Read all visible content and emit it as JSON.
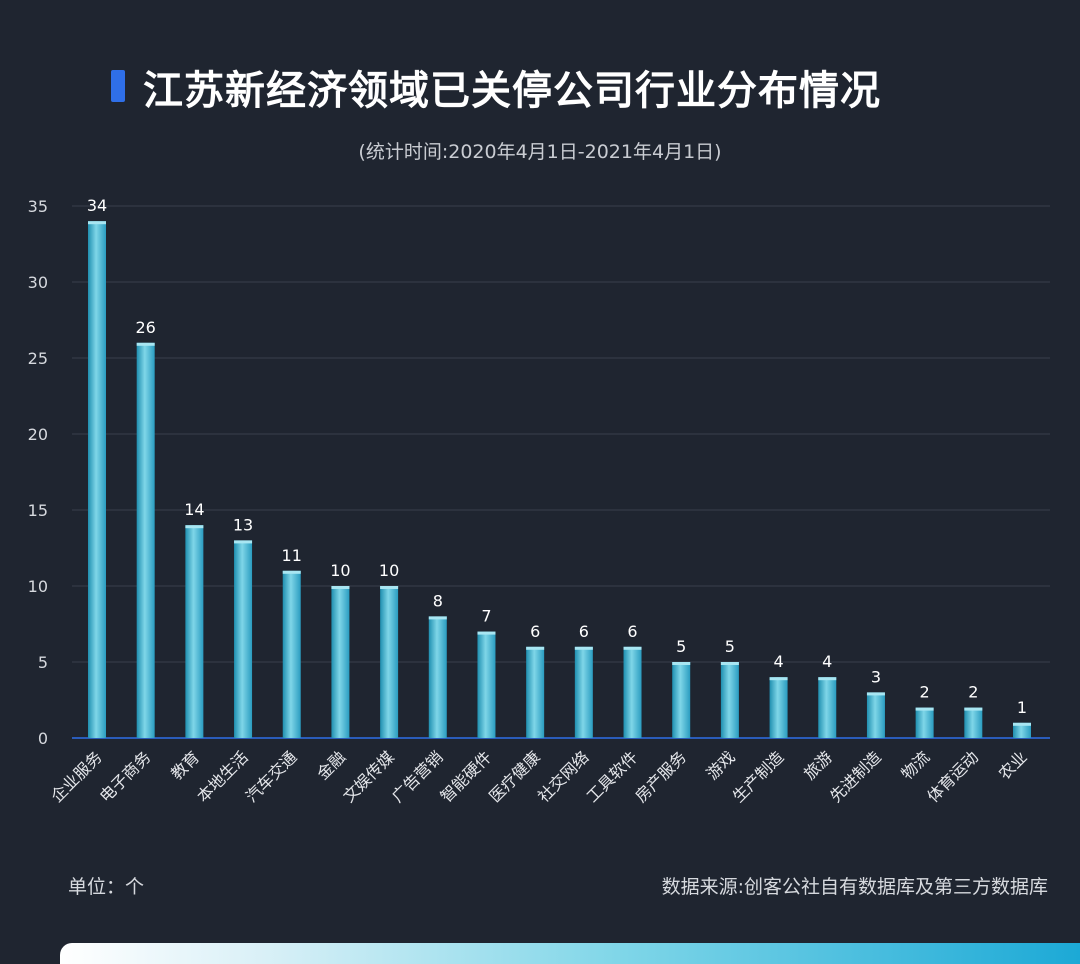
{
  "header": {
    "title": "江苏新经济领域已关停公司行业分布情况",
    "subtitle": "(统计时间:2020年4月1日-2021年4月1日)"
  },
  "footer": {
    "unit": "单位：个",
    "source": "数据来源:创客公社自有数据库及第三方数据库"
  },
  "colors": {
    "background": "#1f2530",
    "accent": "#2f6fe8",
    "bar_light": "#7fd6e8",
    "bar_dark": "#1f8fb0",
    "grid": "#3a404c"
  },
  "chart_data": {
    "type": "bar",
    "title": "江苏新经济领域已关停公司行业分布情况",
    "subtitle": "(统计时间:2020年4月1日-2021年4月1日)",
    "xlabel": "",
    "ylabel": "",
    "ylim": [
      0,
      35
    ],
    "yticks": [
      0,
      5,
      10,
      15,
      20,
      25,
      30,
      35
    ],
    "grid": true,
    "categories": [
      "企业服务",
      "电子商务",
      "教育",
      "本地生活",
      "汽车交通",
      "金融",
      "文娱传媒",
      "广告营销",
      "智能硬件",
      "医疗健康",
      "社交网络",
      "工具软件",
      "房产服务",
      "游戏",
      "生产制造",
      "旅游",
      "先进制造",
      "物流",
      "体育运动",
      "农业"
    ],
    "values": [
      34,
      26,
      14,
      13,
      11,
      10,
      10,
      8,
      7,
      6,
      6,
      6,
      5,
      5,
      4,
      4,
      3,
      2,
      2,
      1
    ]
  }
}
